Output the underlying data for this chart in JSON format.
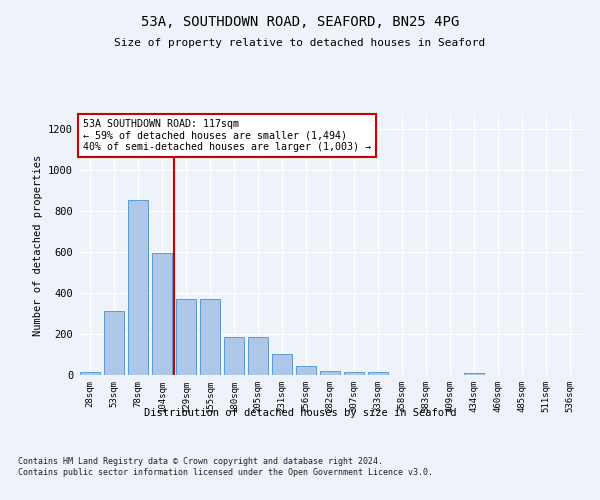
{
  "title1": "53A, SOUTHDOWN ROAD, SEAFORD, BN25 4PG",
  "title2": "Size of property relative to detached houses in Seaford",
  "xlabel": "Distribution of detached houses by size in Seaford",
  "ylabel": "Number of detached properties",
  "categories": [
    "28sqm",
    "53sqm",
    "78sqm",
    "104sqm",
    "129sqm",
    "155sqm",
    "180sqm",
    "205sqm",
    "231sqm",
    "256sqm",
    "282sqm",
    "307sqm",
    "333sqm",
    "358sqm",
    "383sqm",
    "409sqm",
    "434sqm",
    "460sqm",
    "485sqm",
    "511sqm",
    "536sqm"
  ],
  "values": [
    15,
    315,
    855,
    595,
    370,
    370,
    185,
    185,
    105,
    45,
    20,
    15,
    15,
    0,
    0,
    0,
    10,
    0,
    0,
    0,
    0
  ],
  "bar_color": "#aec6e8",
  "bar_edge_color": "#5b9bd5",
  "vline_color": "#cc0000",
  "annotation_text": "53A SOUTHDOWN ROAD: 117sqm\n← 59% of detached houses are smaller (1,494)\n40% of semi-detached houses are larger (1,003) →",
  "annotation_box_color": "#ffffff",
  "ylim": [
    0,
    1270
  ],
  "yticks": [
    0,
    200,
    400,
    600,
    800,
    1000,
    1200
  ],
  "footnote": "Contains HM Land Registry data © Crown copyright and database right 2024.\nContains public sector information licensed under the Open Government Licence v3.0.",
  "bg_color": "#eef2f9",
  "plot_bg": "#eef2f9"
}
